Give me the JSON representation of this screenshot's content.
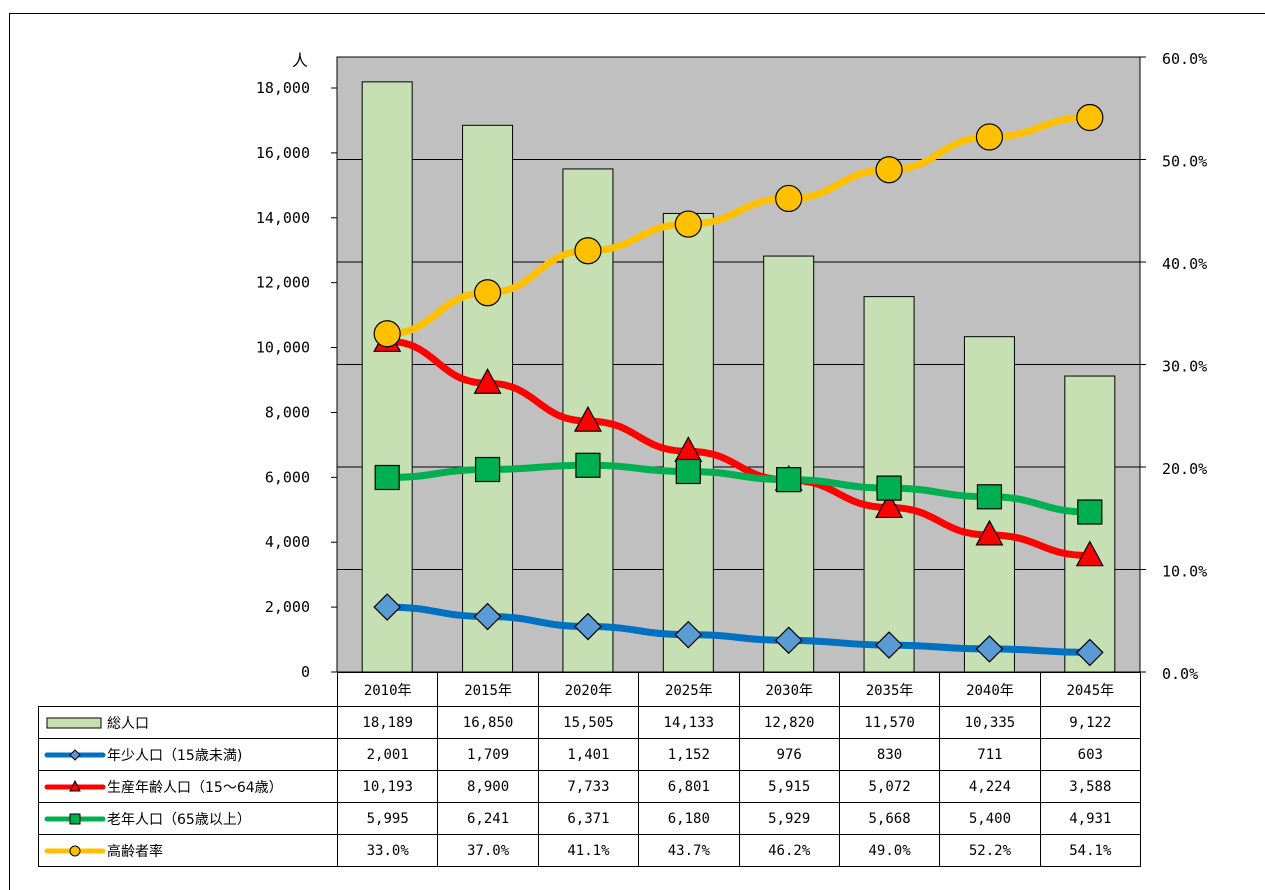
{
  "chart_data": {
    "type": "bar+line",
    "categories": [
      "2010年",
      "2015年",
      "2020年",
      "2025年",
      "2030年",
      "2035年",
      "2040年",
      "2045年"
    ],
    "left_axis": {
      "unit": "人",
      "min": 0,
      "max": 18000,
      "step": 2000,
      "ticks": [
        "0",
        "2,000",
        "4,000",
        "6,000",
        "8,000",
        "10,000",
        "12,000",
        "14,000",
        "16,000",
        "18,000"
      ]
    },
    "right_axis": {
      "min": 0,
      "max": 60,
      "step": 10,
      "ticks": [
        "0.0%",
        "10.0%",
        "20.0%",
        "30.0%",
        "40.0%",
        "50.0%",
        "60.0%"
      ]
    },
    "grid": true,
    "plot_background": "#c0c0c0",
    "series": [
      {
        "name": "総人口",
        "kind": "bar",
        "axis": "left",
        "color": "#c6e0b4",
        "values": [
          18189,
          16850,
          15505,
          14133,
          12820,
          11570,
          10335,
          9122
        ],
        "labels": [
          "18,189",
          "16,850",
          "15,505",
          "14,133",
          "12,820",
          "11,570",
          "10,335",
          "9,122"
        ]
      },
      {
        "name": "年少人口（15歳未満)",
        "kind": "line",
        "axis": "left",
        "color": "#0070c0",
        "marker": "diamond",
        "marker_color": "#5b9bd5",
        "values": [
          2001,
          1709,
          1401,
          1152,
          976,
          830,
          711,
          603
        ],
        "labels": [
          "2,001",
          "1,709",
          "1,401",
          "1,152",
          "976",
          "830",
          "711",
          "603"
        ]
      },
      {
        "name": "生産年齢人口（15～64歳）",
        "kind": "line",
        "axis": "left",
        "color": "#ff0000",
        "marker": "triangle",
        "marker_color": "#ff0000",
        "values": [
          10193,
          8900,
          7733,
          6801,
          5915,
          5072,
          4224,
          3588
        ],
        "labels": [
          "10,193",
          "8,900",
          "7,733",
          "6,801",
          "5,915",
          "5,072",
          "4,224",
          "3,588"
        ]
      },
      {
        "name": "老年人口（65歳以上）",
        "kind": "line",
        "axis": "left",
        "color": "#00b050",
        "marker": "square",
        "marker_color": "#00b050",
        "values": [
          5995,
          6241,
          6371,
          6180,
          5929,
          5668,
          5400,
          4931
        ],
        "labels": [
          "5,995",
          "6,241",
          "6,371",
          "6,180",
          "5,929",
          "5,668",
          "5,400",
          "4,931"
        ]
      },
      {
        "name": "高齢者率",
        "kind": "line",
        "axis": "right",
        "color": "#ffc000",
        "marker": "circle",
        "marker_color": "#ffc000",
        "values": [
          33.0,
          37.0,
          41.1,
          43.7,
          46.2,
          49.0,
          52.2,
          54.1
        ],
        "labels": [
          "33.0%",
          "37.0%",
          "41.1%",
          "43.7%",
          "46.2%",
          "49.0%",
          "52.2%",
          "54.1%"
        ]
      }
    ]
  }
}
